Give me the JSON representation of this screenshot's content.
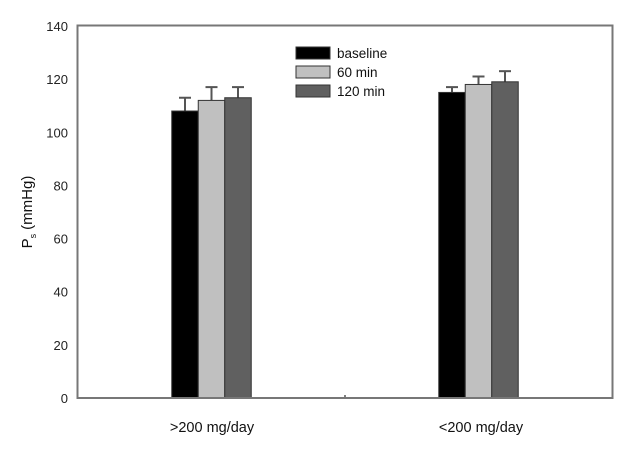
{
  "chart_data": {
    "type": "bar",
    "title": "",
    "xlabel": "",
    "ylabel": "P",
    "ylabel_subscript": "s",
    "ylabel_units": "(mmHg)",
    "ylim": [
      0,
      140
    ],
    "yticks": [
      "0",
      "20",
      "40",
      "60",
      "80",
      "100",
      "120",
      "140"
    ],
    "grid": false,
    "legend_position": "top-center",
    "categories": [
      ">200 mg/day",
      "<200 mg/day"
    ],
    "series": [
      {
        "name": "baseline",
        "color": "#000000",
        "values": [
          108,
          115
        ],
        "errors": [
          5,
          2
        ]
      },
      {
        "name": "60 min",
        "color": "#c0c0c0",
        "values": [
          112,
          118
        ],
        "errors": [
          5,
          3
        ]
      },
      {
        "name": "120 min",
        "color": "#606060",
        "values": [
          113,
          119
        ],
        "errors": [
          4,
          4
        ]
      }
    ]
  }
}
